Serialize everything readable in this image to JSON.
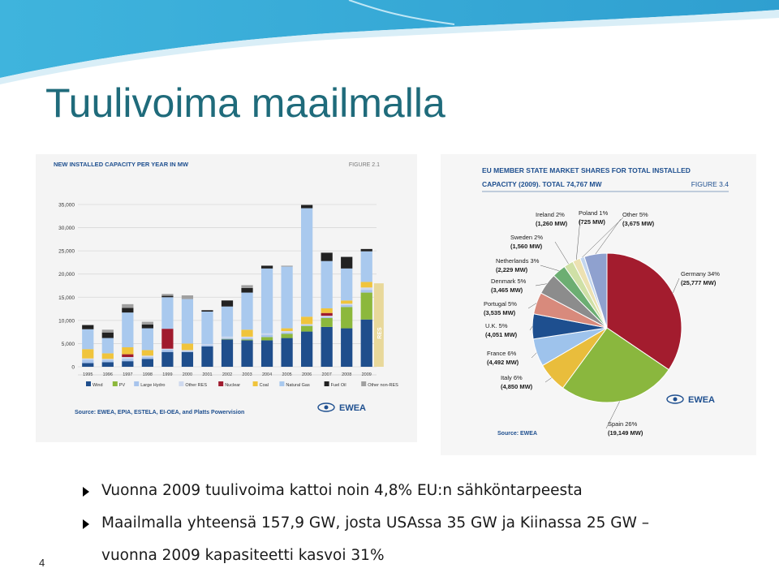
{
  "slide": {
    "title": "Tuulivoima maailmalla",
    "page_number": "4",
    "bullets": [
      {
        "text": "Vuonna 2009 tuulivoima kattoi noin 4,8% EU:n sähköntarpeesta"
      },
      {
        "text": "Maailmalla yhteensä 157,9 GW, josta USAssa 35 GW ja Kiinassa 25 GW –",
        "continuation": "vuonna 2009 kapasiteetti kasvoi 31%"
      }
    ],
    "colors": {
      "title": "#1f6b7b",
      "banner": "#3aaed8"
    }
  },
  "chart_data": [
    {
      "type": "bar",
      "stacked": true,
      "title": "NEW INSTALLED CAPACITY PER YEAR IN MW",
      "figure_label": "FIGURE 2.1",
      "source": "Source: EWEA, EPIA, ESTELA, EI-OEA, and Platts Powervision",
      "logo": "EWEA",
      "bar_annotation": "RES",
      "ylim": [
        0,
        35000
      ],
      "yticks": [
        "35,000",
        "30,000",
        "25,000",
        "20,000",
        "15,000",
        "10,000",
        "5,000",
        "0"
      ],
      "ytick_values": [
        35000,
        30000,
        25000,
        20000,
        15000,
        10000,
        5000,
        0
      ],
      "categories": [
        "1995",
        "1996",
        "1997",
        "1998",
        "1999",
        "2000",
        "2001",
        "2002",
        "2003",
        "2004",
        "2005",
        "2006",
        "2007",
        "2008",
        "2009"
      ],
      "series": [
        {
          "name": "Wind",
          "color": "#1f4e8c",
          "values": [
            800,
            1000,
            1200,
            1700,
            3200,
            3200,
            4400,
            5900,
            5700,
            5700,
            6200,
            7600,
            8600,
            8300,
            10200
          ]
        },
        {
          "name": "PV",
          "color": "#8cb83c",
          "values": [
            0,
            0,
            0,
            0,
            0,
            0,
            0,
            100,
            200,
            700,
            900,
            1200,
            1900,
            4600,
            5800
          ]
        },
        {
          "name": "Large Hydro",
          "color": "#a8c4ec",
          "values": [
            700,
            500,
            500,
            400,
            500,
            100,
            300,
            200,
            300,
            500,
            300,
            200,
            200,
            400,
            600
          ]
        },
        {
          "name": "Other RES",
          "color": "#cfd9ee",
          "values": [
            300,
            200,
            400,
            300,
            200,
            300,
            200,
            300,
            300,
            300,
            300,
            200,
            300,
            300,
            500
          ]
        },
        {
          "name": "Nuclear",
          "color": "#a01b2e",
          "values": [
            0,
            0,
            600,
            0,
            4300,
            0,
            0,
            0,
            0,
            0,
            0,
            0,
            600,
            0,
            0
          ]
        },
        {
          "name": "Coal",
          "color": "#f0c43c",
          "values": [
            2000,
            1200,
            1500,
            1200,
            0,
            1400,
            0,
            0,
            1500,
            0,
            600,
            1600,
            1000,
            700,
            1200
          ]
        },
        {
          "name": "Natural Gas",
          "color": "#a9c9ee",
          "values": [
            4300,
            3300,
            7500,
            4700,
            6800,
            9600,
            7000,
            6500,
            8000,
            14000,
            13300,
            23400,
            10200,
            6900,
            6600
          ]
        },
        {
          "name": "Fuel Oil",
          "color": "#222222",
          "values": [
            900,
            1200,
            1000,
            800,
            300,
            0,
            300,
            1300,
            1000,
            600,
            0,
            700,
            1800,
            2500,
            500
          ]
        },
        {
          "name": "Other non-RES",
          "color": "#a0a0a0",
          "values": [
            0,
            600,
            800,
            600,
            400,
            800,
            0,
            0,
            600,
            0,
            200,
            0,
            0,
            0,
            0
          ]
        }
      ]
    },
    {
      "type": "pie",
      "title_line1": "EU MEMBER STATE MARKET SHARES FOR TOTAL INSTALLED",
      "title_line2": "CAPACITY (2009). TOTAL 74,767 MW",
      "figure_label": "FIGURE 3.4",
      "source": "Source: EWEA",
      "logo": "EWEA",
      "slices": [
        {
          "name": "Germany",
          "pct": "34%",
          "mw": "(25,777 MW)",
          "value": 25777,
          "color": "#a31c2e"
        },
        {
          "name": "Spain",
          "pct": "26%",
          "mw": "(19,149 MW)",
          "value": 19149,
          "color": "#8ab73e"
        },
        {
          "name": "Italy",
          "pct": "6%",
          "mw": "(4,850 MW)",
          "value": 4850,
          "color": "#e9bd3c"
        },
        {
          "name": "France",
          "pct": "6%",
          "mw": "(4,492 MW)",
          "value": 4492,
          "color": "#9ec3ec"
        },
        {
          "name": "U.K.",
          "pct": "5%",
          "mw": "(4,051 MW)",
          "value": 4051,
          "color": "#1e4f8f"
        },
        {
          "name": "Portugal",
          "pct": "5%",
          "mw": "(3,535 MW)",
          "value": 3535,
          "color": "#d88a7c"
        },
        {
          "name": "Denmark",
          "pct": "5%",
          "mw": "(3,465 MW)",
          "value": 3465,
          "color": "#8c8c8c"
        },
        {
          "name": "Netherlands",
          "pct": "3%",
          "mw": "(2,229 MW)",
          "value": 2229,
          "color": "#6cae72"
        },
        {
          "name": "Sweden",
          "pct": "2%",
          "mw": "(1,560 MW)",
          "value": 1560,
          "color": "#cfe0a6"
        },
        {
          "name": "Ireland",
          "pct": "2%",
          "mw": "(1,260 MW)",
          "value": 1260,
          "color": "#ece1b2"
        },
        {
          "name": "Poland",
          "pct": "1%",
          "mw": "(725 MW)",
          "value": 725,
          "color": "#c3d6ee"
        },
        {
          "name": "Other",
          "pct": "5%",
          "mw": "(3,675 MW)",
          "value": 3675,
          "color": "#8fa1cf"
        }
      ]
    }
  ]
}
